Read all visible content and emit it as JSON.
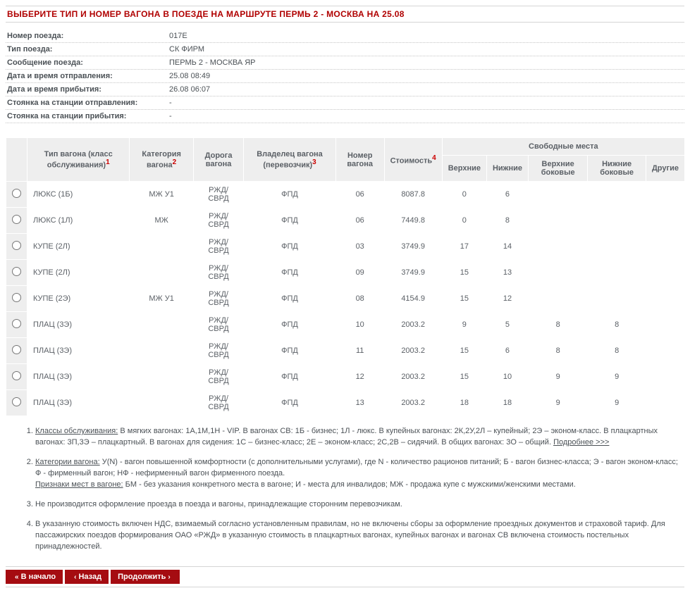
{
  "title": "ВЫБЕРИТЕ ТИП И НОМЕР ВАГОНА В ПОЕЗДЕ НА МАРШРУТЕ ПЕРМЬ 2 - МОСКВА НА 25.08",
  "info": [
    {
      "label": "Номер поезда:",
      "value": "017Е"
    },
    {
      "label": "Тип поезда:",
      "value": "СК ФИРМ"
    },
    {
      "label": "Сообщение поезда:",
      "value": "ПЕРМЬ 2 - МОСКВА ЯР"
    },
    {
      "label": "Дата и время отправления:",
      "value": "25.08 08:49"
    },
    {
      "label": "Дата и время прибытия:",
      "value": "26.08 06:07"
    },
    {
      "label": "Стоянка на станции отправления:",
      "value": "-"
    },
    {
      "label": "Стоянка на станции прибытия:",
      "value": "-"
    }
  ],
  "headers": {
    "type": "Тип вагона (класс обслуживания)",
    "cat": "Категория вагона",
    "road": "Дорога вагона",
    "owner": "Владелец вагона (перевозчик)",
    "num": "Номер вагона",
    "price": "Стоимость",
    "free": "Свободные места",
    "upper": "Верхние",
    "lower": "Нижние",
    "supper": "Верхние боковые",
    "slower": "Нижние боковые",
    "other": "Другие"
  },
  "rows": [
    {
      "type": "ЛЮКС (1Б)",
      "cat": "МЖ У1",
      "road": "РЖД/СВРД",
      "owner": "ФПД",
      "num": "06",
      "price": "8087.8",
      "u": "0",
      "l": "6",
      "su": "",
      "sl": "",
      "o": ""
    },
    {
      "type": "ЛЮКС (1Л)",
      "cat": "МЖ",
      "road": "РЖД/СВРД",
      "owner": "ФПД",
      "num": "06",
      "price": "7449.8",
      "u": "0",
      "l": "8",
      "su": "",
      "sl": "",
      "o": ""
    },
    {
      "type": "КУПЕ (2Л)",
      "cat": "",
      "road": "РЖД/СВРД",
      "owner": "ФПД",
      "num": "03",
      "price": "3749.9",
      "u": "17",
      "l": "14",
      "su": "",
      "sl": "",
      "o": ""
    },
    {
      "type": "КУПЕ (2Л)",
      "cat": "",
      "road": "РЖД/СВРД",
      "owner": "ФПД",
      "num": "09",
      "price": "3749.9",
      "u": "15",
      "l": "13",
      "su": "",
      "sl": "",
      "o": ""
    },
    {
      "type": "КУПЕ (2Э)",
      "cat": "МЖ У1",
      "road": "РЖД/СВРД",
      "owner": "ФПД",
      "num": "08",
      "price": "4154.9",
      "u": "15",
      "l": "12",
      "su": "",
      "sl": "",
      "o": ""
    },
    {
      "type": "ПЛАЦ (3Э)",
      "cat": "",
      "road": "РЖД/СВРД",
      "owner": "ФПД",
      "num": "10",
      "price": "2003.2",
      "u": "9",
      "l": "5",
      "su": "8",
      "sl": "8",
      "o": ""
    },
    {
      "type": "ПЛАЦ (3Э)",
      "cat": "",
      "road": "РЖД/СВРД",
      "owner": "ФПД",
      "num": "11",
      "price": "2003.2",
      "u": "15",
      "l": "6",
      "su": "8",
      "sl": "8",
      "o": ""
    },
    {
      "type": "ПЛАЦ (3Э)",
      "cat": "",
      "road": "РЖД/СВРД",
      "owner": "ФПД",
      "num": "12",
      "price": "2003.2",
      "u": "15",
      "l": "10",
      "su": "9",
      "sl": "9",
      "o": ""
    },
    {
      "type": "ПЛАЦ (3Э)",
      "cat": "",
      "road": "РЖД/СВРД",
      "owner": "ФПД",
      "num": "13",
      "price": "2003.2",
      "u": "18",
      "l": "18",
      "su": "9",
      "sl": "9",
      "o": ""
    }
  ],
  "footnotes": {
    "f1_lead": "Классы обслуживания:",
    "f1_body": " В мягких вагонах: 1А,1М,1Н - VIP. В вагонах СВ: 1Б - бизнес; 1Л - люкс. В купейных вагонах: 2К,2У,2Л – купейный; 2Э – эконом-класс. В плацкартных вагонах: 3П,3Э – плацкартный. В вагонах для сидения: 1С – бизнес-класс; 2Е – эконом-класс; 2С,2В – сидячий. В общих вагонах: 3О – общий.  ",
    "f1_link": "Подробнее >>>",
    "f2a_lead": "Категории вагона:",
    "f2a_body": " У(N) - вагон повышенной комфортности (с дополнительными услугами), где N - количество рационов питаний; Б - вагон бизнес-класса; Э - вагон эконом-класс; Ф - фирменный вагон; НФ - нефирменный вагон фирменного поезда.",
    "f2b_lead": "Признаки мест в вагоне:",
    "f2b_body": " БМ - без указания конкретного места в вагоне; И - места для инвалидов; МЖ - продажа купе с мужскими/женскими местами.",
    "f3": "Не производится оформление проезда в поезда и вагоны, принадлежащие сторонним перевозчикам.",
    "f4": "В указанную стоимость включен НДС, взимаемый согласно установленным правилам, но не включены сборы за оформление проездных документов и страховой тариф. Для пассажирских поездов формирования ОАО «РЖД» в указанную стоимость в плацкартных вагонах, купейных вагонах и вагонах СВ включена стоимость постельных принадлежностей."
  },
  "buttons": {
    "start": "В начало",
    "back": "Назад",
    "next": "Продолжить"
  }
}
